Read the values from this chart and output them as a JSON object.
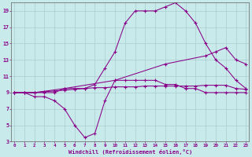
{
  "xlabel": "Windchill (Refroidissement éolien,°C)",
  "bg_color": "#c8eaea",
  "line_color": "#880088",
  "grid_color": "#aacccc",
  "xlim": [
    0,
    23
  ],
  "ylim": [
    3,
    20
  ],
  "xticks": [
    0,
    1,
    2,
    3,
    4,
    5,
    6,
    7,
    8,
    9,
    10,
    11,
    12,
    13,
    14,
    15,
    16,
    17,
    18,
    19,
    20,
    21,
    22,
    23
  ],
  "yticks": [
    3,
    5,
    7,
    9,
    11,
    13,
    15,
    17,
    19
  ],
  "line1_x": [
    0,
    1,
    2,
    3,
    4,
    5,
    6,
    7,
    8,
    9,
    10,
    11,
    12,
    13,
    14,
    15,
    16,
    17,
    18,
    19,
    20,
    21,
    22,
    23
  ],
  "line1_y": [
    9.0,
    9.0,
    8.5,
    8.5,
    8.0,
    7.0,
    5.0,
    3.5,
    4.0,
    8.0,
    10.5,
    10.5,
    10.5,
    10.5,
    10.5,
    10.0,
    10.0,
    9.5,
    9.5,
    9.0,
    9.0,
    9.0,
    9.0,
    9.0
  ],
  "line2_x": [
    0,
    2,
    5,
    10,
    15,
    19,
    20,
    21,
    22,
    23
  ],
  "line2_y": [
    9.0,
    9.0,
    9.5,
    10.5,
    12.5,
    13.5,
    14.0,
    14.5,
    13.0,
    12.5
  ],
  "line3_x": [
    0,
    1,
    2,
    3,
    4,
    5,
    6,
    7,
    8,
    9,
    10,
    11,
    12,
    13,
    14,
    15,
    16,
    17,
    18,
    19,
    20,
    21,
    22,
    23
  ],
  "line3_y": [
    9.0,
    9.0,
    9.0,
    9.0,
    9.0,
    9.5,
    9.5,
    9.5,
    10.0,
    12.0,
    14.0,
    17.5,
    19.0,
    19.0,
    19.0,
    19.5,
    20.0,
    19.0,
    17.5,
    15.0,
    13.0,
    12.0,
    10.5,
    9.5
  ],
  "line4_x": [
    0,
    1,
    2,
    3,
    4,
    5,
    6,
    7,
    8,
    9,
    10,
    11,
    12,
    13,
    14,
    15,
    16,
    17,
    18,
    19,
    20,
    21,
    22,
    23
  ],
  "line4_y": [
    9.0,
    9.0,
    9.0,
    9.1,
    9.2,
    9.3,
    9.4,
    9.5,
    9.6,
    9.6,
    9.7,
    9.7,
    9.7,
    9.8,
    9.8,
    9.8,
    9.8,
    9.8,
    9.8,
    9.9,
    9.9,
    9.9,
    9.5,
    9.4
  ]
}
